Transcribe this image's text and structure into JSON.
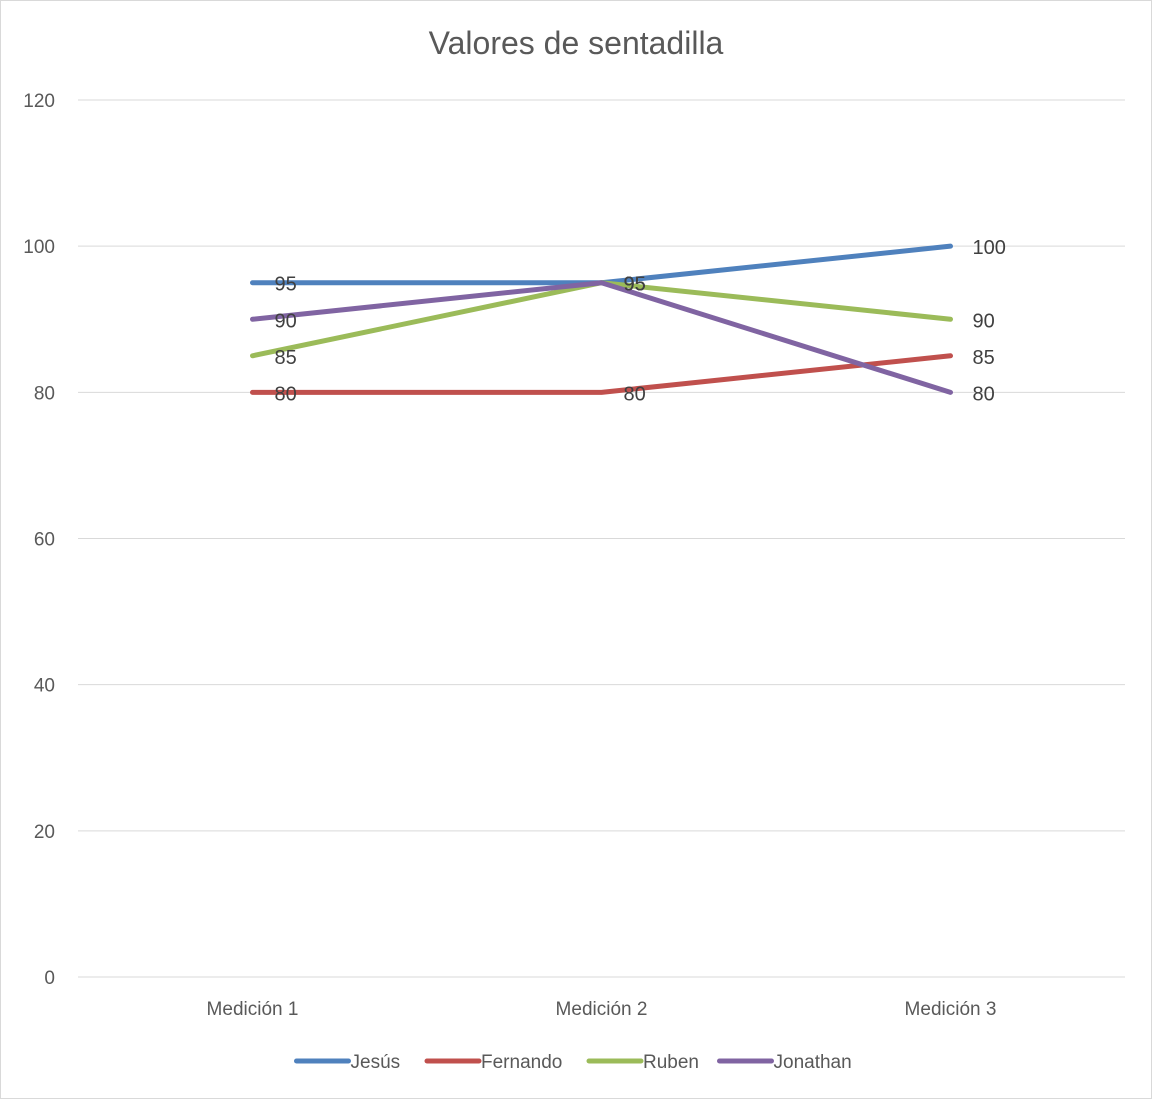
{
  "chart_data": {
    "type": "line",
    "title": "Valores de sentadilla",
    "categories": [
      "Medición 1",
      "Medición 2",
      "Medición 3"
    ],
    "ylim": [
      0,
      120
    ],
    "yticks": [
      0,
      20,
      40,
      60,
      80,
      100,
      120
    ],
    "grid": true,
    "legend_position": "bottom",
    "data_labels": true,
    "series": [
      {
        "name": "Jesús",
        "color": "#4f81bd",
        "values": [
          95,
          95,
          100
        ]
      },
      {
        "name": "Fernando",
        "color": "#c0504d",
        "values": [
          80,
          80,
          85
        ]
      },
      {
        "name": "Ruben",
        "color": "#9bbb59",
        "values": [
          85,
          95,
          90
        ]
      },
      {
        "name": "Jonathan",
        "color": "#8064a2",
        "values": [
          90,
          95,
          80
        ]
      }
    ]
  }
}
